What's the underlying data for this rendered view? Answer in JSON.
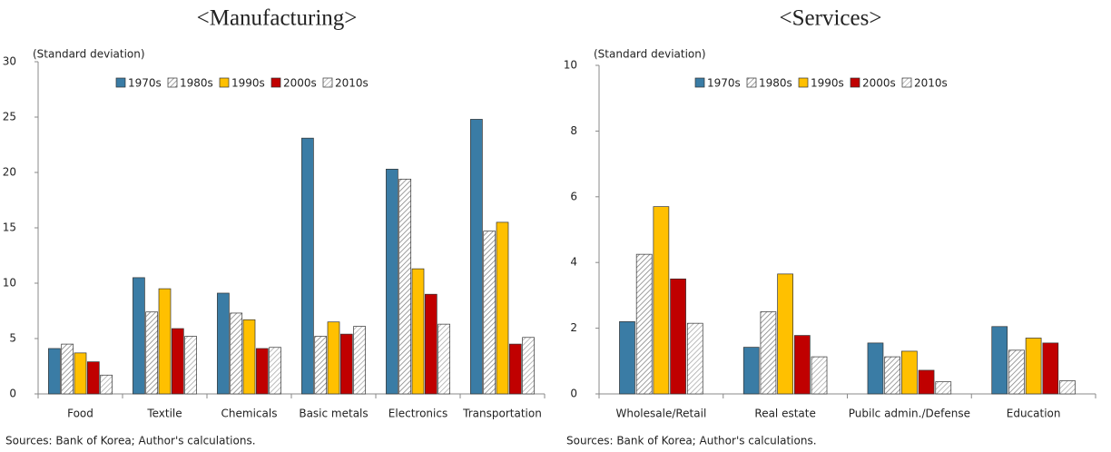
{
  "chart_data": [
    {
      "type": "bar",
      "title": "<Manufacturing>",
      "y_label": "(Standard deviation)",
      "source": "Sources: Bank of Korea; Author's calculations.",
      "categories": [
        "Food",
        "Textile",
        "Chemicals",
        "Basic metals",
        "Electronics",
        "Transportation"
      ],
      "series": [
        {
          "name": "1970s",
          "color": "#3a7ca5",
          "values": [
            4.1,
            10.5,
            9.1,
            23.1,
            20.3,
            24.8
          ]
        },
        {
          "name": "1980s",
          "color": "#7f7f7f",
          "pattern": "hatch",
          "values": [
            4.5,
            7.4,
            7.3,
            5.2,
            19.4,
            14.7
          ]
        },
        {
          "name": "1990s",
          "color": "#ffc000",
          "values": [
            3.7,
            9.5,
            6.7,
            6.5,
            11.3,
            15.5
          ]
        },
        {
          "name": "2000s",
          "color": "#c00000",
          "values": [
            2.9,
            5.9,
            4.1,
            5.4,
            9.0,
            4.5
          ]
        },
        {
          "name": "2010s",
          "color": "#a6a6a6",
          "pattern": "hatch",
          "values": [
            1.7,
            5.2,
            4.2,
            6.1,
            6.3,
            5.1
          ]
        }
      ],
      "ylim": [
        0,
        30
      ],
      "yticks": [
        0,
        5,
        10,
        15,
        20,
        25,
        30
      ]
    },
    {
      "type": "bar",
      "title": "<Services>",
      "y_label": "(Standard deviation)",
      "source": "Sources: Bank of Korea; Author's calculations.",
      "categories": [
        "Wholesale/Retail",
        "Real estate",
        "Pubilc admin./Defense",
        "Education"
      ],
      "series": [
        {
          "name": "1970s",
          "color": "#3a7ca5",
          "values": [
            2.2,
            1.42,
            1.55,
            2.05
          ]
        },
        {
          "name": "1980s",
          "color": "#7f7f7f",
          "pattern": "hatch",
          "values": [
            4.25,
            2.5,
            1.13,
            1.33
          ]
        },
        {
          "name": "1990s",
          "color": "#ffc000",
          "values": [
            5.7,
            3.65,
            1.3,
            1.7
          ]
        },
        {
          "name": "2000s",
          "color": "#c00000",
          "values": [
            3.5,
            1.78,
            0.72,
            1.55
          ]
        },
        {
          "name": "2010s",
          "color": "#a6a6a6",
          "pattern": "hatch",
          "values": [
            2.15,
            1.13,
            0.37,
            0.4
          ]
        }
      ],
      "ylim": [
        0,
        10
      ],
      "yticks": [
        0,
        2,
        4,
        6,
        8,
        10
      ]
    }
  ]
}
